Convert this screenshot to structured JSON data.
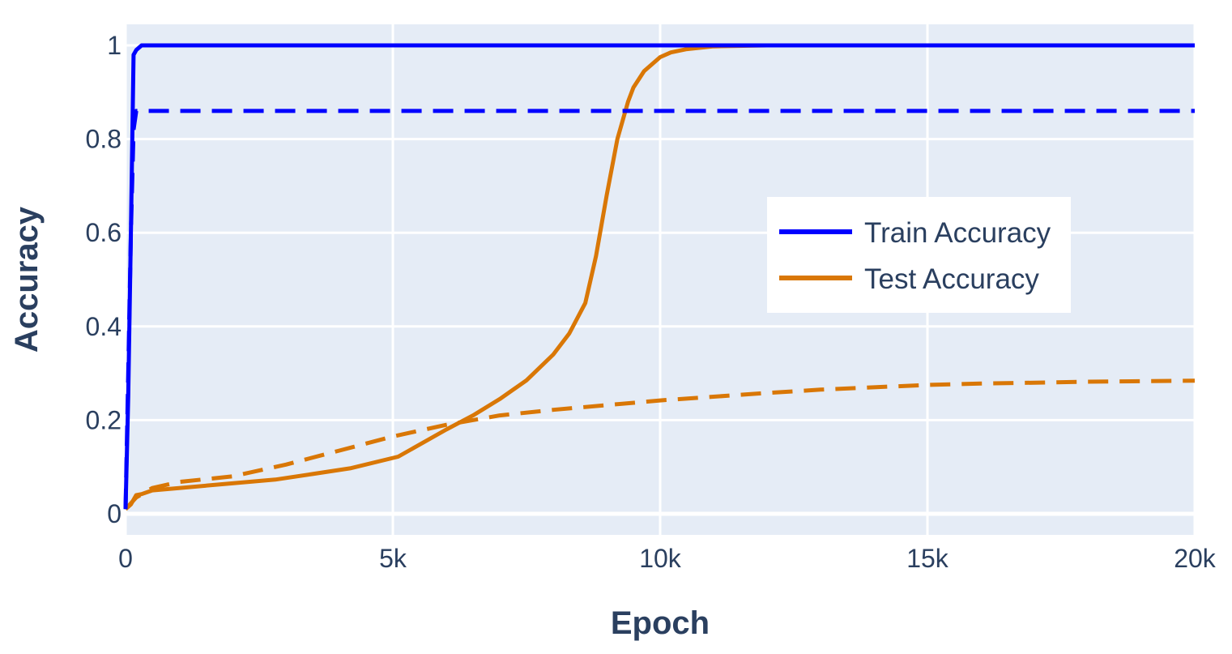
{
  "chart_data": {
    "type": "line",
    "title": "",
    "xlabel": "Epoch",
    "ylabel": "Accuracy",
    "xlim": [
      0,
      20000
    ],
    "ylim": [
      -0.045,
      1.045
    ],
    "x_ticks": [
      {
        "value": 0,
        "label": "0"
      },
      {
        "value": 5000,
        "label": "5k"
      },
      {
        "value": 10000,
        "label": "10k"
      },
      {
        "value": 15000,
        "label": "15k"
      },
      {
        "value": 20000,
        "label": "20k"
      }
    ],
    "y_ticks": [
      {
        "value": 0,
        "label": "0"
      },
      {
        "value": 0.2,
        "label": "0.2"
      },
      {
        "value": 0.4,
        "label": "0.4"
      },
      {
        "value": 0.6,
        "label": "0.6"
      },
      {
        "value": 0.8,
        "label": "0.8"
      },
      {
        "value": 1,
        "label": "1"
      }
    ],
    "grid": true,
    "legend_position": "right",
    "colors": {
      "plot_background": "#e5ecf6",
      "grid": "#ffffff",
      "text": "#2a3f5f",
      "train": "#0000ff",
      "test": "#d97706"
    },
    "series": [
      {
        "name": "Train Accuracy",
        "legend": true,
        "color": "#0000ff",
        "dash": "solid",
        "x": [
          0,
          50,
          100,
          150,
          200,
          300,
          500,
          1000,
          5000,
          10000,
          15000,
          20000
        ],
        "y": [
          0.01,
          0.25,
          0.6,
          0.98,
          0.99,
          1.0,
          1.0,
          1.0,
          1.0,
          1.0,
          1.0,
          1.0
        ]
      },
      {
        "name": "",
        "legend": false,
        "color": "#0000ff",
        "dash": "dash",
        "x": [
          0,
          50,
          100,
          150,
          200,
          300,
          500,
          1000,
          5000,
          10000,
          15000,
          20000
        ],
        "y": [
          0.01,
          0.3,
          0.6,
          0.82,
          0.86,
          0.86,
          0.86,
          0.86,
          0.86,
          0.86,
          0.86,
          0.86
        ]
      },
      {
        "name": "Test Accuracy",
        "legend": true,
        "color": "#d97706",
        "dash": "solid",
        "x": [
          0,
          100,
          200,
          300,
          500,
          1000,
          2000,
          2800,
          3500,
          4200,
          5100,
          6000,
          6500,
          7000,
          7500,
          8000,
          8300,
          8600,
          8800,
          9000,
          9200,
          9400,
          9500,
          9700,
          9900,
          10000,
          10200,
          10500,
          11000,
          12000,
          13000,
          20000
        ],
        "y": [
          0.01,
          0.02,
          0.04,
          0.042,
          0.05,
          0.055,
          0.065,
          0.073,
          0.085,
          0.097,
          0.122,
          0.18,
          0.21,
          0.245,
          0.285,
          0.34,
          0.385,
          0.45,
          0.55,
          0.68,
          0.8,
          0.88,
          0.91,
          0.945,
          0.965,
          0.975,
          0.985,
          0.992,
          0.998,
          1.0,
          1.0,
          1.0
        ]
      },
      {
        "name": "",
        "legend": false,
        "color": "#d97706",
        "dash": "dash",
        "x": [
          0,
          200,
          500,
          1000,
          2000,
          3000,
          4000,
          5000,
          6000,
          7000,
          8000,
          9000,
          10000,
          11000,
          12000,
          13000,
          14000,
          15000,
          16000,
          17000,
          18000,
          19000,
          20000
        ],
        "y": [
          0.01,
          0.035,
          0.055,
          0.068,
          0.08,
          0.105,
          0.135,
          0.165,
          0.19,
          0.21,
          0.222,
          0.232,
          0.242,
          0.25,
          0.258,
          0.265,
          0.27,
          0.275,
          0.278,
          0.28,
          0.282,
          0.283,
          0.284
        ]
      }
    ]
  }
}
